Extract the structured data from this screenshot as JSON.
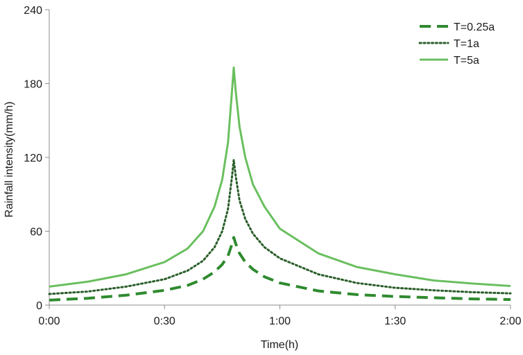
{
  "chart_data": {
    "type": "line",
    "title": "",
    "xlabel": "Time(h)",
    "ylabel": "Rainfall intensity(mm/h)",
    "x_ticks": [
      "0:00",
      "0:30",
      "1:00",
      "1:30",
      "2:00"
    ],
    "x_tick_minutes": [
      0,
      30,
      60,
      90,
      120
    ],
    "xlim_minutes": [
      0,
      120
    ],
    "y_ticks": [
      "0",
      "60",
      "120",
      "180",
      "240"
    ],
    "ylim": [
      0,
      240
    ],
    "grid": false,
    "legend_position": "top-right",
    "peak_time_minutes": 48,
    "series": [
      {
        "name": "T=0.25a",
        "style": "dashed",
        "color": "#2f8a2f",
        "points": [
          [
            0,
            4
          ],
          [
            10,
            5.5
          ],
          [
            20,
            8
          ],
          [
            30,
            12
          ],
          [
            36,
            16
          ],
          [
            40,
            21
          ],
          [
            43,
            27
          ],
          [
            45,
            33
          ],
          [
            46.5,
            40
          ],
          [
            47.5,
            49
          ],
          [
            48,
            55
          ],
          [
            48.5,
            50
          ],
          [
            49.5,
            42
          ],
          [
            51,
            35
          ],
          [
            53,
            29
          ],
          [
            56,
            23
          ],
          [
            60,
            18
          ],
          [
            70,
            11.5
          ],
          [
            80,
            8.5
          ],
          [
            90,
            7
          ],
          [
            100,
            6
          ],
          [
            110,
            5
          ],
          [
            120,
            4.5
          ]
        ]
      },
      {
        "name": "T=1a",
        "style": "dotted",
        "color": "#2a5e2a",
        "points": [
          [
            0,
            9
          ],
          [
            10,
            11
          ],
          [
            20,
            15
          ],
          [
            30,
            21
          ],
          [
            36,
            28
          ],
          [
            40,
            36
          ],
          [
            43,
            47
          ],
          [
            45,
            60
          ],
          [
            46.5,
            78
          ],
          [
            47.5,
            103
          ],
          [
            48,
            118
          ],
          [
            48.5,
            105
          ],
          [
            49.5,
            85
          ],
          [
            51,
            70
          ],
          [
            53,
            58
          ],
          [
            56,
            47
          ],
          [
            60,
            38
          ],
          [
            70,
            25
          ],
          [
            80,
            18
          ],
          [
            90,
            14
          ],
          [
            100,
            12
          ],
          [
            110,
            10.5
          ],
          [
            120,
            9.5
          ]
        ]
      },
      {
        "name": "T=5a",
        "style": "solid",
        "color": "#6abf5f",
        "points": [
          [
            0,
            15
          ],
          [
            10,
            19
          ],
          [
            20,
            25
          ],
          [
            30,
            35
          ],
          [
            36,
            46
          ],
          [
            40,
            60
          ],
          [
            43,
            80
          ],
          [
            45,
            102
          ],
          [
            46.5,
            132
          ],
          [
            47.5,
            172
          ],
          [
            48,
            193
          ],
          [
            48.5,
            174
          ],
          [
            49.5,
            145
          ],
          [
            51,
            120
          ],
          [
            53,
            98
          ],
          [
            56,
            80
          ],
          [
            60,
            62
          ],
          [
            70,
            42
          ],
          [
            80,
            31
          ],
          [
            90,
            25
          ],
          [
            100,
            20
          ],
          [
            110,
            17.5
          ],
          [
            120,
            15.5
          ]
        ]
      }
    ]
  }
}
